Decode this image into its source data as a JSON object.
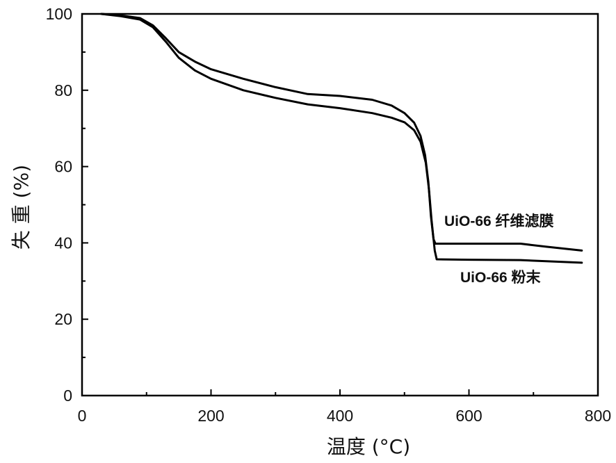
{
  "chart_data": {
    "type": "line",
    "title": "",
    "xlabel": "温度 (°C)",
    "ylabel": "失 重 (%)",
    "xlim": [
      0,
      800
    ],
    "ylim": [
      0,
      100
    ],
    "xticks": [
      "0",
      "200",
      "400",
      "600",
      "800"
    ],
    "yticks": [
      "0",
      "20",
      "40",
      "60",
      "80",
      "100"
    ],
    "grid": false,
    "legend": "none",
    "series": [
      {
        "name": "UiO-66 纤维滤膜",
        "color": "#000000",
        "points": [
          [
            30,
            100
          ],
          [
            60,
            99.6
          ],
          [
            90,
            98.9
          ],
          [
            110,
            97
          ],
          [
            130,
            93.6
          ],
          [
            150,
            90
          ],
          [
            175,
            87.5
          ],
          [
            200,
            85.5
          ],
          [
            250,
            83
          ],
          [
            300,
            80.8
          ],
          [
            350,
            79
          ],
          [
            400,
            78.5
          ],
          [
            450,
            77.5
          ],
          [
            480,
            76
          ],
          [
            500,
            74
          ],
          [
            515,
            71.5
          ],
          [
            525,
            68
          ],
          [
            532,
            63
          ],
          [
            537,
            56
          ],
          [
            541,
            47
          ],
          [
            545,
            41
          ],
          [
            548,
            39.8
          ],
          [
            600,
            39.8
          ],
          [
            680,
            39.8
          ],
          [
            720,
            39
          ],
          [
            775,
            38
          ]
        ]
      },
      {
        "name": "UiO-66 粉末",
        "color": "#000000",
        "points": [
          [
            30,
            100
          ],
          [
            60,
            99.4
          ],
          [
            90,
            98.5
          ],
          [
            110,
            96.5
          ],
          [
            130,
            92.7
          ],
          [
            150,
            88.5
          ],
          [
            175,
            85.2
          ],
          [
            200,
            83
          ],
          [
            250,
            80
          ],
          [
            300,
            78
          ],
          [
            350,
            76.3
          ],
          [
            400,
            75.3
          ],
          [
            450,
            74
          ],
          [
            480,
            72.8
          ],
          [
            500,
            71.6
          ],
          [
            515,
            69.5
          ],
          [
            525,
            66.5
          ],
          [
            533,
            61
          ],
          [
            538,
            54
          ],
          [
            542,
            46
          ],
          [
            547,
            38
          ],
          [
            550,
            35.7
          ],
          [
            600,
            35.6
          ],
          [
            680,
            35.5
          ],
          [
            720,
            35.2
          ],
          [
            775,
            34.8
          ]
        ]
      }
    ]
  }
}
